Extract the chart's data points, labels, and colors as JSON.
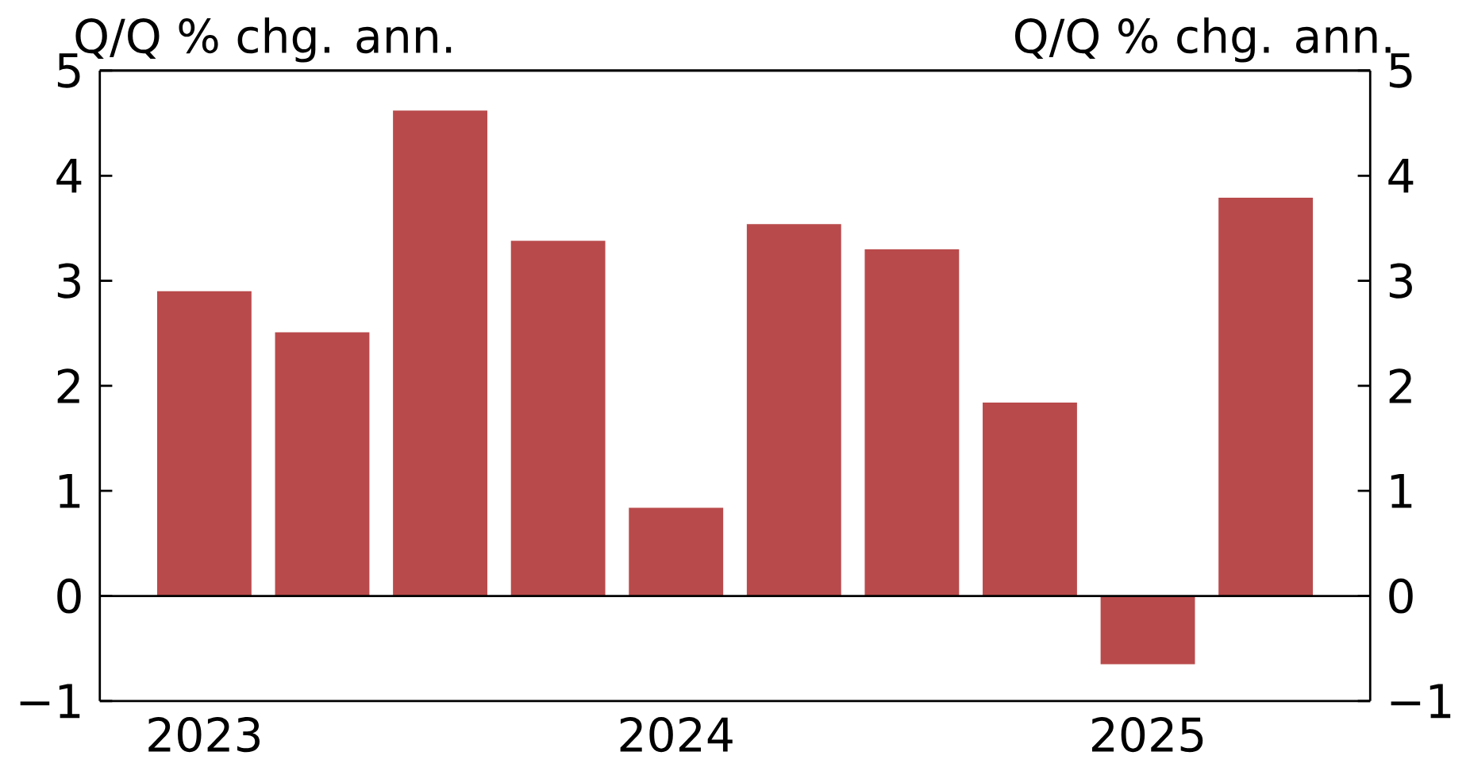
{
  "chart_data": {
    "type": "bar",
    "ylabel": "Q/Q % chg. ann.",
    "y2label": "Q/Q % chg. ann.",
    "categories": [
      "2023",
      null,
      null,
      null,
      "2024",
      null,
      null,
      null,
      "2025",
      null
    ],
    "values": [
      2.9,
      2.51,
      4.62,
      3.38,
      0.84,
      3.54,
      3.3,
      1.84,
      -0.65,
      3.79
    ],
    "color": "#b94a4b",
    "ylim": [
      -1,
      5
    ],
    "yticks": [
      {
        "value": -1,
        "label": "−1"
      },
      0,
      1,
      2,
      3,
      4,
      5
    ],
    "y2lim": [
      -1,
      5
    ],
    "y2ticks": [
      {
        "value": -1,
        "label": "−1"
      },
      0,
      1,
      2,
      3,
      4,
      5
    ],
    "ref_lines": [
      {
        "axis": "y",
        "value": 0,
        "color": "#000000"
      }
    ]
  }
}
